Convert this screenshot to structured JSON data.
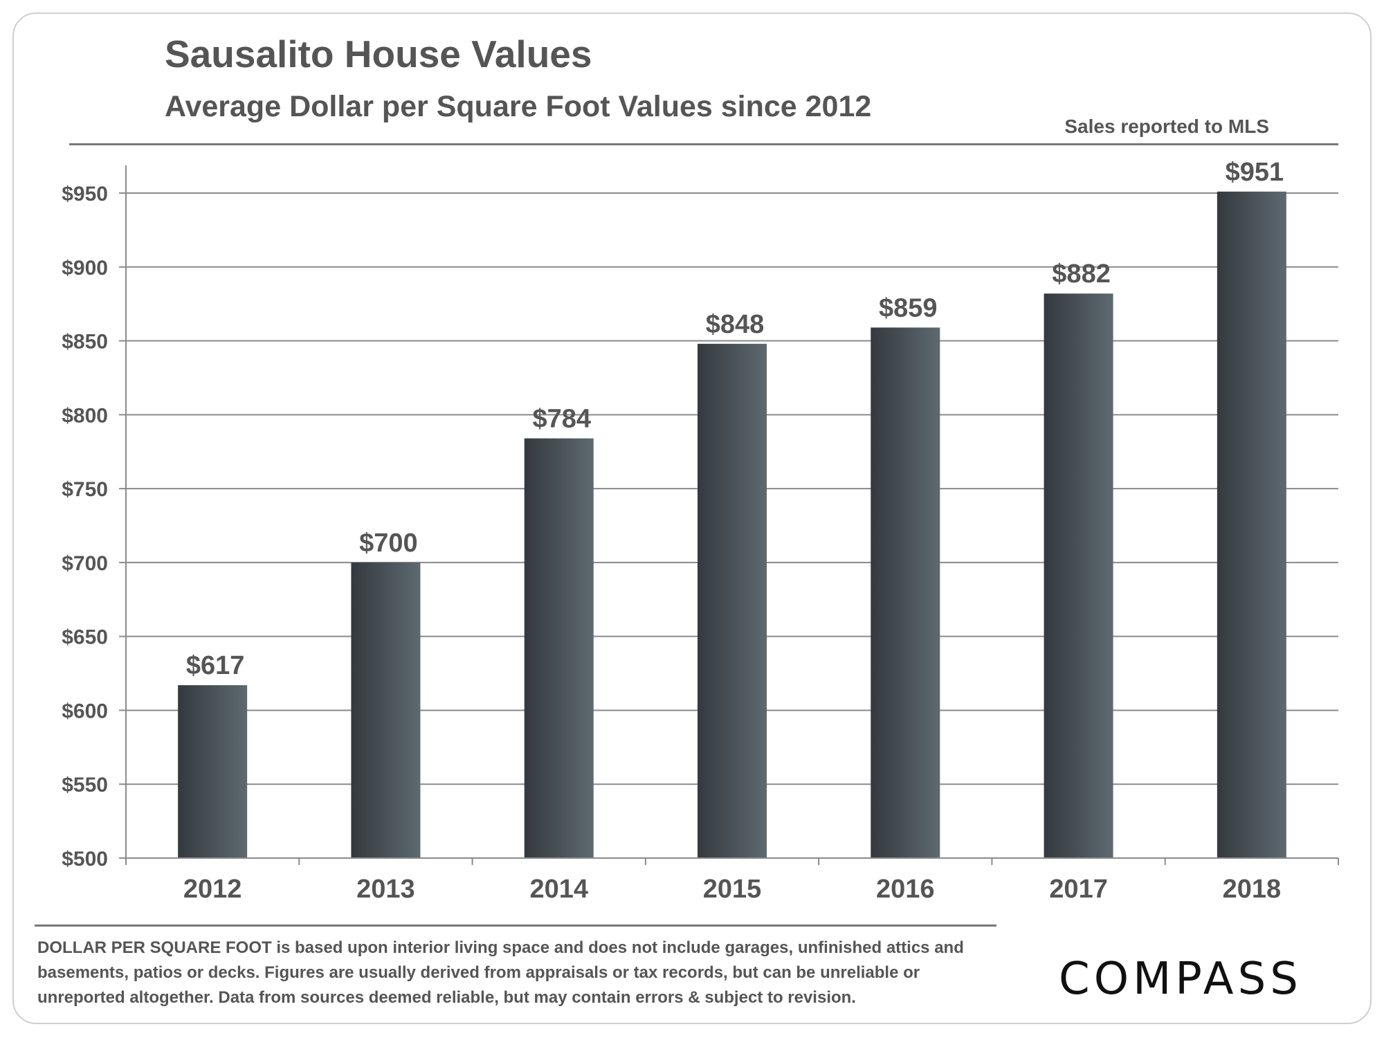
{
  "header": {
    "title": "Sausalito House Values",
    "subtitle": "Average Dollar per Square Foot Values since 2012",
    "source_note": "Sales reported to MLS"
  },
  "footnote": "DOLLAR PER SQUARE FOOT is based upon interior living space and does not include garages, unfinished attics and basements, patios or decks. Figures are usually derived from appraisals or tax records, but can be unreliable or unreported altogether. Data from sources deemed reliable, but may contain errors & subject to revision.",
  "logo": "COMPASS",
  "colors": {
    "bar_dark": "#34393f",
    "bar_light": "#5d6a70",
    "text": "#555555",
    "grid": "#8a8a8a"
  },
  "chart_data": {
    "type": "bar",
    "title": "Sausalito House Values",
    "subtitle": "Average Dollar per Square Foot Values since 2012",
    "xlabel": "",
    "ylabel": "",
    "categories": [
      "2012",
      "2013",
      "2014",
      "2015",
      "2016",
      "2017",
      "2018"
    ],
    "values": [
      617,
      700,
      784,
      848,
      859,
      882,
      951
    ],
    "data_labels": [
      "$617",
      "$700",
      "$784",
      "$848",
      "$859",
      "$882",
      "$951"
    ],
    "ylim": [
      500,
      950
    ],
    "yticks": [
      500,
      550,
      600,
      650,
      700,
      750,
      800,
      850,
      900,
      950
    ],
    "ytick_labels": [
      "$500",
      "$550",
      "$600",
      "$650",
      "$700",
      "$750",
      "$800",
      "$850",
      "$900",
      "$950"
    ],
    "grid": true,
    "legend": "none"
  }
}
